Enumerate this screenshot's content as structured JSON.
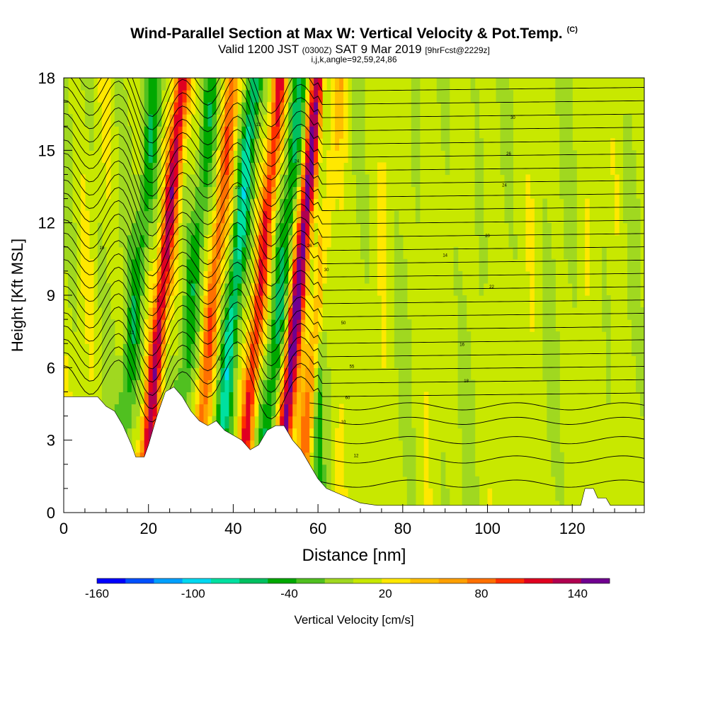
{
  "header": {
    "title": "Wind-Parallel Section at Max W: Vertical Velocity & Pot.Temp.",
    "copyright": "(C)",
    "valid_prefix": "Valid 1200 JST",
    "valid_utc": "(0300Z)",
    "valid_date": "SAT 9 Mar 2019",
    "forecast": "[9hrFcst@2229z]",
    "ijk": "i,j,k,angle=92,59,24,86"
  },
  "chart_data": {
    "type": "heatmap",
    "xlabel": "Distance [nm]",
    "ylabel": "Height [Kft MSL]",
    "xlim": [
      0,
      137
    ],
    "ylim": [
      0,
      18
    ],
    "xticks": [
      0,
      20,
      40,
      60,
      80,
      100,
      120
    ],
    "yticks": [
      0,
      3,
      6,
      9,
      12,
      15,
      18
    ],
    "colorbar": {
      "label": "Vertical Velocity [cm/s]",
      "tick_labels": [
        "-160",
        "-100",
        "-40",
        "20",
        "80",
        "140"
      ],
      "tick_values": [
        -160,
        -100,
        -40,
        20,
        80,
        140
      ],
      "range": [
        -160,
        160
      ],
      "colors": [
        "#0000ff",
        "#0050ff",
        "#00a0ff",
        "#00d8f0",
        "#00e0a0",
        "#00c060",
        "#00a800",
        "#50c020",
        "#a0d820",
        "#c8e800",
        "#ffe800",
        "#ffc000",
        "#ffa000",
        "#ff7000",
        "#ff3000",
        "#e00020",
        "#b00050",
        "#700090"
      ]
    },
    "terrain": [
      [
        0,
        4.8
      ],
      [
        4,
        4.8
      ],
      [
        8,
        4.8
      ],
      [
        10,
        4.4
      ],
      [
        12,
        4.2
      ],
      [
        14,
        3.6
      ],
      [
        16,
        2.8
      ],
      [
        17,
        2.3
      ],
      [
        19,
        2.3
      ],
      [
        20,
        2.8
      ],
      [
        22,
        4.0
      ],
      [
        24,
        5.0
      ],
      [
        26,
        5.2
      ],
      [
        28,
        4.8
      ],
      [
        30,
        4.2
      ],
      [
        32,
        3.8
      ],
      [
        34,
        3.6
      ],
      [
        36,
        3.8
      ],
      [
        38,
        3.4
      ],
      [
        40,
        3.2
      ],
      [
        42,
        3.0
      ],
      [
        44,
        2.6
      ],
      [
        46,
        2.8
      ],
      [
        48,
        3.4
      ],
      [
        50,
        3.6
      ],
      [
        52,
        3.6
      ],
      [
        54,
        3.0
      ],
      [
        56,
        2.6
      ],
      [
        58,
        2.0
      ],
      [
        60,
        1.4
      ],
      [
        62,
        1.0
      ],
      [
        66,
        0.7
      ],
      [
        70,
        0.4
      ],
      [
        74,
        0.3
      ],
      [
        100,
        0.3
      ],
      [
        122,
        0.3
      ],
      [
        123,
        1.0
      ],
      [
        125,
        1.0
      ],
      [
        126,
        0.6
      ],
      [
        128,
        0.6
      ],
      [
        129,
        0.3
      ],
      [
        137,
        0.3
      ]
    ],
    "updrafts": [
      {
        "x": 18,
        "w": 120
      },
      {
        "x": 30,
        "w": 80
      },
      {
        "x": 41,
        "w": 110
      },
      {
        "x": 50,
        "w": 150
      },
      {
        "x": 55,
        "w": 70
      },
      {
        "x": 65,
        "w": 40
      },
      {
        "x": 75,
        "w": 30
      },
      {
        "x": 85,
        "w": 25
      },
      {
        "x": 100,
        "w": 20
      },
      {
        "x": 110,
        "w": 25
      },
      {
        "x": 123,
        "w": 20
      },
      {
        "x": 130,
        "w": 25
      }
    ],
    "downdrafts": [
      {
        "x": 12,
        "w": -50
      },
      {
        "x": 25,
        "w": -40
      },
      {
        "x": 35,
        "w": -90
      },
      {
        "x": 46,
        "w": -60
      },
      {
        "x": 60,
        "w": -35
      }
    ],
    "isentrope_labels": [
      "10",
      "12",
      "14",
      "16",
      "18",
      "20",
      "22",
      "24",
      "26",
      "30",
      "50",
      "55",
      "60"
    ]
  }
}
